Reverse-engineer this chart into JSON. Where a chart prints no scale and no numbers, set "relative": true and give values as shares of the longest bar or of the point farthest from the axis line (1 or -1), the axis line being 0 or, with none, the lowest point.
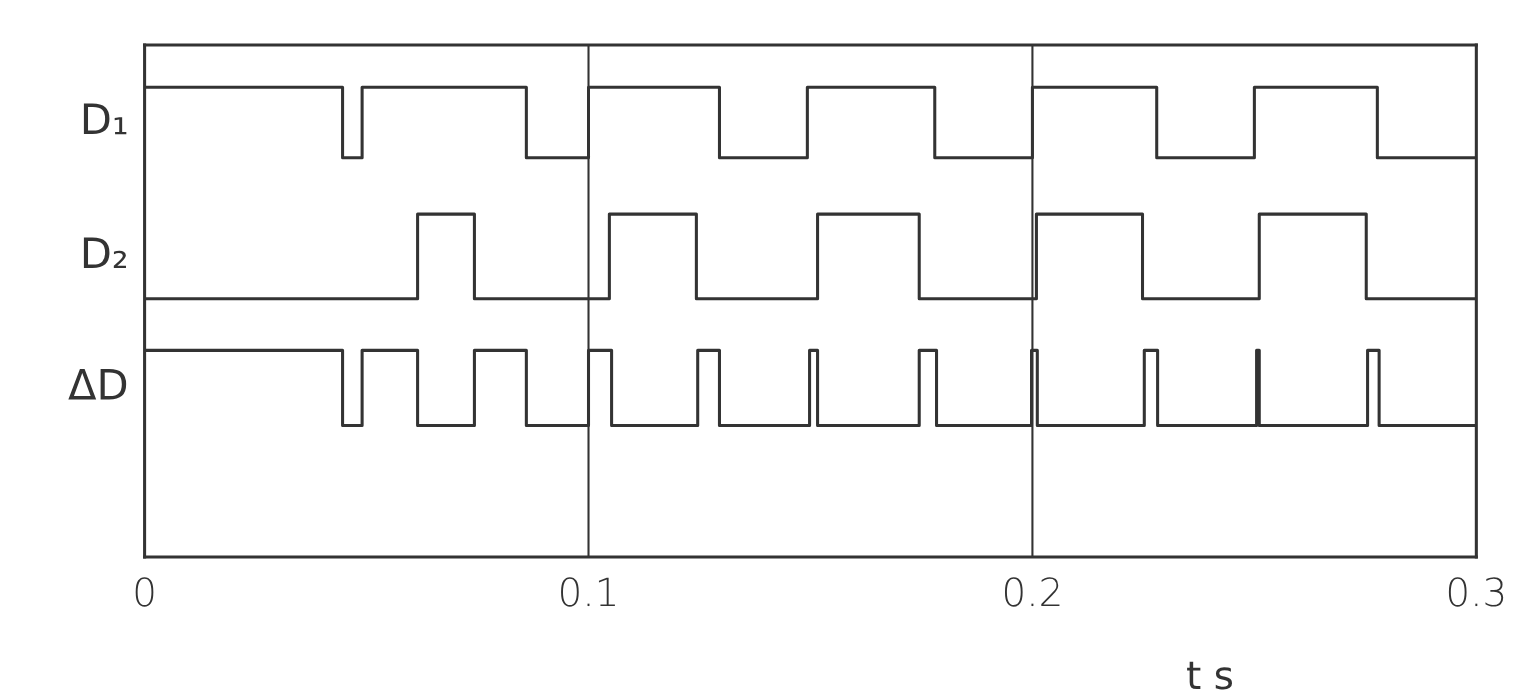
{
  "chart_data": {
    "type": "step",
    "xlabel": "t s",
    "relative": true,
    "xlim": [
      0,
      0.3
    ],
    "xticks": [
      0,
      0.1,
      0.2,
      0.3
    ],
    "grid": "x",
    "legend": false,
    "tick_labels": "x",
    "marker": "none",
    "line_style": "solid",
    "series": [
      {
        "name": "D₁",
        "color": "#333333",
        "x": [
          0,
          0.0446,
          0.049,
          0.086,
          0.1,
          0.1295,
          0.1493,
          0.178,
          0.2,
          0.228,
          0.25,
          0.2777,
          0.3
        ],
        "values": [
          1,
          0.85,
          1,
          0.85,
          1,
          0.85,
          1,
          0.85,
          1,
          0.85,
          1,
          0.85,
          0.85
        ]
      },
      {
        "name": "D₂",
        "color": "#333333",
        "x": [
          0,
          0.0615,
          0.0743,
          0.1047,
          0.1243,
          0.1516,
          0.1745,
          0.2009,
          0.2248,
          0.2511,
          0.2752,
          0.3
        ],
        "values": [
          0.55,
          0.73,
          0.55,
          0.73,
          0.55,
          0.73,
          0.55,
          0.73,
          0.55,
          0.73,
          0.55,
          0.55
        ]
      },
      {
        "name": "ΔD",
        "color": "#333333",
        "x": [
          0,
          0.0446,
          0.049,
          0.0615,
          0.0743,
          0.086,
          0.1,
          0.1052,
          0.1246,
          0.1295,
          0.1498,
          0.1516,
          0.1745,
          0.1784,
          0.1998,
          0.2011,
          0.2252,
          0.2282,
          0.2505,
          0.2511,
          0.2755,
          0.2781,
          0.3
        ],
        "values": [
          0.44,
          0.28,
          0.44,
          0.28,
          0.44,
          0.28,
          0.44,
          0.28,
          0.44,
          0.28,
          0.44,
          0.28,
          0.44,
          0.28,
          0.44,
          0.28,
          0.44,
          0.28,
          0.44,
          0.28,
          0.44,
          0.28,
          0.28
        ]
      }
    ]
  }
}
